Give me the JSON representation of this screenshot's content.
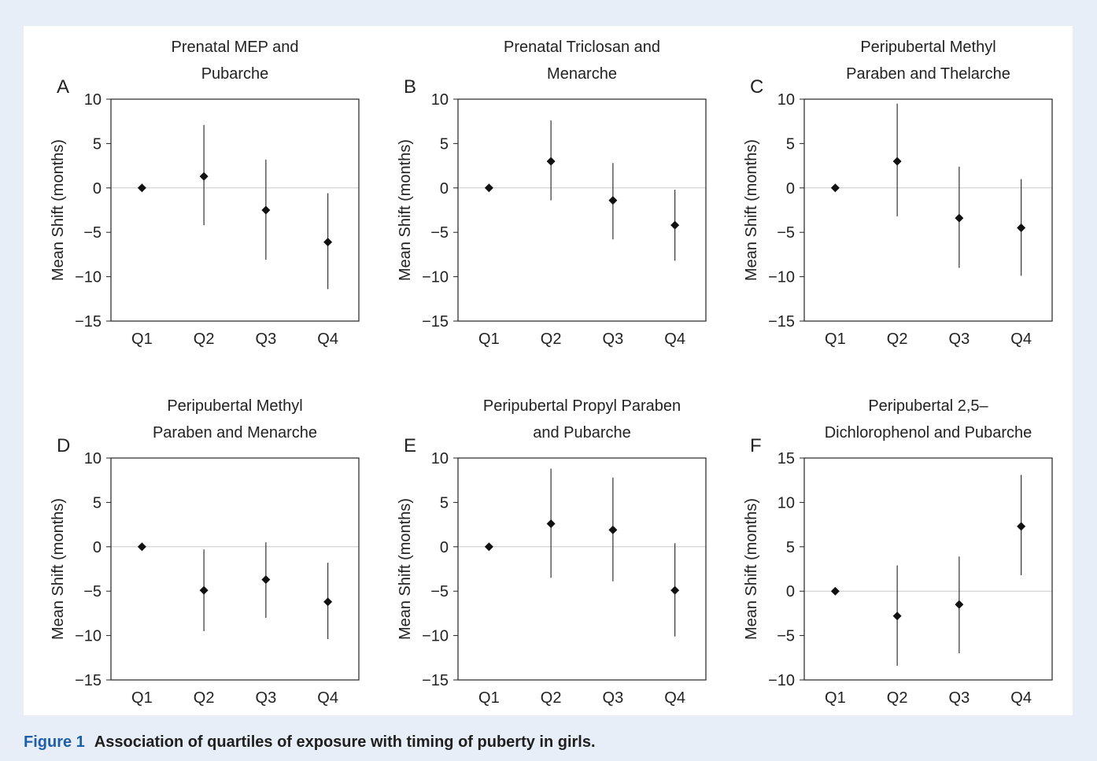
{
  "caption": {
    "label": "Figure 1",
    "text": "Association of quartiles of exposure with timing of puberty in girls."
  },
  "chart_data": [
    {
      "type": "scatter",
      "panel": "A",
      "title_lines": [
        "Prenatal MEP and",
        "Pubarche"
      ],
      "ylabel": "Mean Shift (months)",
      "categories": [
        "Q1",
        "Q2",
        "Q3",
        "Q4"
      ],
      "ylim": [
        -15,
        10
      ],
      "yticks": [
        10,
        5,
        0,
        -5,
        -10,
        -15
      ],
      "values": [
        0,
        1.3,
        -2.5,
        -6.1
      ],
      "ci_low": [
        0,
        -4.2,
        -8.1,
        -11.4
      ],
      "ci_high": [
        0,
        7.1,
        3.2,
        -0.6
      ]
    },
    {
      "type": "scatter",
      "panel": "B",
      "title_lines": [
        "Prenatal Triclosan and",
        "Menarche"
      ],
      "ylabel": "Mean Shift (months)",
      "categories": [
        "Q1",
        "Q2",
        "Q3",
        "Q4"
      ],
      "ylim": [
        -15,
        10
      ],
      "yticks": [
        10,
        5,
        0,
        -5,
        -10,
        -15
      ],
      "values": [
        0,
        3.0,
        -1.4,
        -4.2
      ],
      "ci_low": [
        0,
        -1.4,
        -5.8,
        -8.2
      ],
      "ci_high": [
        0,
        7.6,
        2.8,
        -0.2
      ]
    },
    {
      "type": "scatter",
      "panel": "C",
      "title_lines": [
        "Peripubertal Methyl",
        "Paraben and Thelarche"
      ],
      "ylabel": "Mean Shift (months)",
      "categories": [
        "Q1",
        "Q2",
        "Q3",
        "Q4"
      ],
      "ylim": [
        -15,
        10
      ],
      "yticks": [
        10,
        5,
        0,
        -5,
        -10,
        -15
      ],
      "values": [
        0,
        3.0,
        -3.4,
        -4.5
      ],
      "ci_low": [
        0,
        -3.2,
        -9.0,
        -9.9
      ],
      "ci_high": [
        0,
        9.5,
        2.4,
        1.0
      ]
    },
    {
      "type": "scatter",
      "panel": "D",
      "title_lines": [
        "Peripubertal Methyl",
        "Paraben and Menarche"
      ],
      "ylabel": "Mean Shift (months)",
      "categories": [
        "Q1",
        "Q2",
        "Q3",
        "Q4"
      ],
      "ylim": [
        -15,
        10
      ],
      "yticks": [
        10,
        5,
        0,
        -5,
        -10,
        -15
      ],
      "values": [
        0,
        -4.9,
        -3.7,
        -6.2
      ],
      "ci_low": [
        0,
        -9.5,
        -8.0,
        -10.4
      ],
      "ci_high": [
        0,
        -0.3,
        0.5,
        -1.8
      ]
    },
    {
      "type": "scatter",
      "panel": "E",
      "title_lines": [
        "Peripubertal Propyl Paraben",
        "and Pubarche"
      ],
      "ylabel": "Mean Shift (months)",
      "categories": [
        "Q1",
        "Q2",
        "Q3",
        "Q4"
      ],
      "ylim": [
        -15,
        10
      ],
      "yticks": [
        10,
        5,
        0,
        -5,
        -10,
        -15
      ],
      "values": [
        0,
        2.6,
        1.9,
        -4.9
      ],
      "ci_low": [
        0,
        -3.5,
        -3.9,
        -10.1
      ],
      "ci_high": [
        0,
        8.8,
        7.8,
        0.4
      ]
    },
    {
      "type": "scatter",
      "panel": "F",
      "title_lines": [
        "Peripubertal 2,5–",
        "Dichlorophenol and Pubarche"
      ],
      "ylabel": "Mean Shift (months)",
      "categories": [
        "Q1",
        "Q2",
        "Q3",
        "Q4"
      ],
      "ylim": [
        -10,
        15
      ],
      "yticks": [
        15,
        10,
        5,
        0,
        -5,
        -10
      ],
      "values": [
        0,
        -2.8,
        -1.5,
        7.3
      ],
      "ci_low": [
        0,
        -8.4,
        -7.0,
        1.8
      ],
      "ci_high": [
        0,
        2.9,
        3.9,
        13.1
      ]
    }
  ]
}
